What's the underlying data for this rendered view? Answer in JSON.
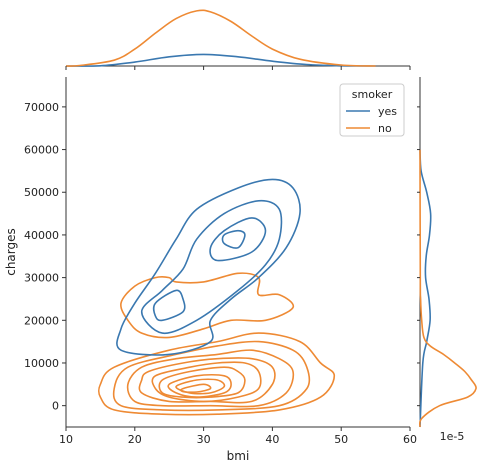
{
  "chart_data": {
    "type": "kde-jointplot",
    "xlabel": "bmi",
    "ylabel": "charges",
    "xlim": [
      10,
      60
    ],
    "ylim": [
      -5000,
      77000
    ],
    "x_ticks": [
      10,
      20,
      30,
      40,
      50,
      60
    ],
    "y_ticks": [
      0,
      10000,
      20000,
      30000,
      40000,
      50000,
      60000,
      70000
    ],
    "right_marginal_offset_text": "1e-5",
    "legend": {
      "title": "smoker",
      "placement": "top-right",
      "entries": [
        "yes",
        "no"
      ]
    },
    "series": [
      {
        "name": "yes",
        "color": "#3a78b0",
        "bmi_density": [
          {
            "x": 15,
            "d": 0.0005
          },
          {
            "x": 20,
            "d": 0.008
          },
          {
            "x": 25,
            "d": 0.019
          },
          {
            "x": 30,
            "d": 0.024
          },
          {
            "x": 35,
            "d": 0.019
          },
          {
            "x": 40,
            "d": 0.01
          },
          {
            "x": 45,
            "d": 0.003
          },
          {
            "x": 50,
            "d": 0.0005
          }
        ],
        "charges_density": [
          {
            "y": 10000,
            "d": 0.05
          },
          {
            "y": 15000,
            "d": 0.12
          },
          {
            "y": 20000,
            "d": 0.18
          },
          {
            "y": 25000,
            "d": 0.16
          },
          {
            "y": 30000,
            "d": 0.1
          },
          {
            "y": 35000,
            "d": 0.11
          },
          {
            "y": 40000,
            "d": 0.17
          },
          {
            "y": 45000,
            "d": 0.19
          },
          {
            "y": 50000,
            "d": 0.12
          },
          {
            "y": 55000,
            "d": 0.02
          }
        ],
        "contours": [
          [
            [
              25,
              12000
            ],
            [
              31,
              15000
            ],
            [
              31,
              20000
            ],
            [
              34,
              25000
            ],
            [
              38,
              30000
            ],
            [
              42,
              37000
            ],
            [
              44,
              45000
            ],
            [
              43,
              51000
            ],
            [
              40,
              53000
            ],
            [
              35,
              51000
            ],
            [
              29,
              46000
            ],
            [
              26,
              39000
            ],
            [
              23,
              31000
            ],
            [
              20,
              24000
            ],
            [
              18,
              18000
            ],
            [
              18,
              13000
            ]
          ],
          [
            [
              24,
              17000
            ],
            [
              29,
              20000
            ],
            [
              35,
              27000
            ],
            [
              39,
              33000
            ],
            [
              41,
              39000
            ],
            [
              41,
              46000
            ],
            [
              38,
              48000
            ],
            [
              33,
              45000
            ],
            [
              29,
              39000
            ],
            [
              27,
              32000
            ],
            [
              24,
              27000
            ],
            [
              21,
              22000
            ]
          ],
          [
            [
              32,
              34000
            ],
            [
              37,
              36000
            ],
            [
              39,
              41000
            ],
            [
              37,
              44000
            ],
            [
              33,
              41000
            ],
            [
              31,
              37000
            ]
          ],
          [
            [
              24,
              20000
            ],
            [
              27,
              22000
            ],
            [
              27,
              25000
            ],
            [
              26,
              27000
            ],
            [
              23,
              24000
            ],
            [
              23,
              21000
            ]
          ],
          [
            [
              33,
              38000
            ],
            [
              35,
              37000
            ],
            [
              36,
              40000
            ],
            [
              35,
              41000
            ],
            [
              33,
              40000
            ]
          ]
        ]
      },
      {
        "name": "no",
        "color": "#ee8a34",
        "bmi_density": [
          {
            "x": 12,
            "d": 0.001
          },
          {
            "x": 17,
            "d": 0.012
          },
          {
            "x": 20,
            "d": 0.035
          },
          {
            "x": 23,
            "d": 0.068
          },
          {
            "x": 26,
            "d": 0.098
          },
          {
            "x": 29,
            "d": 0.114
          },
          {
            "x": 31,
            "d": 0.112
          },
          {
            "x": 34,
            "d": 0.092
          },
          {
            "x": 37,
            "d": 0.062
          },
          {
            "x": 40,
            "d": 0.035
          },
          {
            "x": 44,
            "d": 0.014
          },
          {
            "x": 50,
            "d": 0.002
          }
        ],
        "charges_density": [
          {
            "y": -3000,
            "d": 0.03
          },
          {
            "y": 0,
            "d": 0.35
          },
          {
            "y": 2000,
            "d": 0.85
          },
          {
            "y": 4000,
            "d": 1.0
          },
          {
            "y": 6000,
            "d": 0.92
          },
          {
            "y": 8000,
            "d": 0.8
          },
          {
            "y": 10000,
            "d": 0.62
          },
          {
            "y": 12000,
            "d": 0.42
          },
          {
            "y": 14000,
            "d": 0.18
          },
          {
            "y": 16000,
            "d": 0.07
          },
          {
            "y": 20000,
            "d": 0.03
          },
          {
            "y": 25000,
            "d": 0.01
          },
          {
            "y": 30000,
            "d": 0.005
          }
        ],
        "contours": [
          [
            [
              20,
              28000
            ],
            [
              23,
              30000
            ],
            [
              25,
              30000
            ],
            [
              26,
              29000
            ],
            [
              30,
              29000
            ],
            [
              35,
              31000
            ],
            [
              38,
              30000
            ],
            [
              38,
              26000
            ],
            [
              41,
              26000
            ],
            [
              43,
              23000
            ],
            [
              39,
              20000
            ],
            [
              34,
              20000
            ],
            [
              30,
              18000
            ],
            [
              25,
              16000
            ],
            [
              21,
              17000
            ],
            [
              19,
              20000
            ],
            [
              18,
              24000
            ]
          ],
          [
            [
              17,
              9000
            ],
            [
              25,
              13000
            ],
            [
              32,
              15000
            ],
            [
              38,
              17000
            ],
            [
              44,
              15000
            ],
            [
              47,
              10000
            ],
            [
              49,
              7000
            ],
            [
              47,
              2000
            ],
            [
              41,
              -1000
            ],
            [
              32,
              -2000
            ],
            [
              24,
              -2000
            ],
            [
              17,
              -1000
            ],
            [
              15,
              2000
            ],
            [
              15,
              5000
            ]
          ],
          [
            [
              19,
              9000
            ],
            [
              26,
              12000
            ],
            [
              32,
              14000
            ],
            [
              38,
              15000
            ],
            [
              43,
              13000
            ],
            [
              45,
              9000
            ],
            [
              45,
              4000
            ],
            [
              41,
              0
            ],
            [
              32,
              -1000
            ],
            [
              24,
              -1000
            ],
            [
              18,
              0
            ],
            [
              17,
              4000
            ]
          ],
          [
            [
              21,
              9000
            ],
            [
              26,
              11000
            ],
            [
              32,
              12000
            ],
            [
              37,
              13000
            ],
            [
              41,
              11000
            ],
            [
              43,
              8000
            ],
            [
              42,
              3000
            ],
            [
              38,
              0
            ],
            [
              31,
              0
            ],
            [
              24,
              0
            ],
            [
              20,
              1000
            ],
            [
              19,
              5000
            ]
          ],
          [
            [
              22,
              8000
            ],
            [
              27,
              10000
            ],
            [
              32,
              11000
            ],
            [
              37,
              11000
            ],
            [
              40,
              9000
            ],
            [
              40,
              5000
            ],
            [
              37,
              1000
            ],
            [
              31,
              1000
            ],
            [
              25,
              1000
            ],
            [
              21,
              3000
            ],
            [
              21,
              6000
            ]
          ],
          [
            [
              23,
              7000
            ],
            [
              28,
              9000
            ],
            [
              32,
              10000
            ],
            [
              36,
              10000
            ],
            [
              38,
              8000
            ],
            [
              38,
              4000
            ],
            [
              35,
              2000
            ],
            [
              30,
              1000
            ],
            [
              25,
              2000
            ],
            [
              23,
              4000
            ]
          ],
          [
            [
              24,
              6000
            ],
            [
              28,
              8000
            ],
            [
              33,
              9000
            ],
            [
              35,
              8000
            ],
            [
              36,
              6000
            ],
            [
              35,
              3000
            ],
            [
              31,
              2000
            ],
            [
              27,
              2000
            ],
            [
              24,
              3000
            ]
          ],
          [
            [
              25,
              5000
            ],
            [
              29,
              7000
            ],
            [
              33,
              7000
            ],
            [
              34,
              5000
            ],
            [
              33,
              3000
            ],
            [
              29,
              2000
            ],
            [
              26,
              3000
            ]
          ],
          [
            [
              26,
              4500
            ],
            [
              29,
              6000
            ],
            [
              32,
              6000
            ],
            [
              33,
              4500
            ],
            [
              31,
              3000
            ],
            [
              28,
              3000
            ]
          ],
          [
            [
              27,
              4000
            ],
            [
              30,
              5000
            ],
            [
              31,
              4000
            ],
            [
              29,
              3200
            ],
            [
              27,
              3300
            ]
          ]
        ]
      }
    ],
    "grid": false
  }
}
